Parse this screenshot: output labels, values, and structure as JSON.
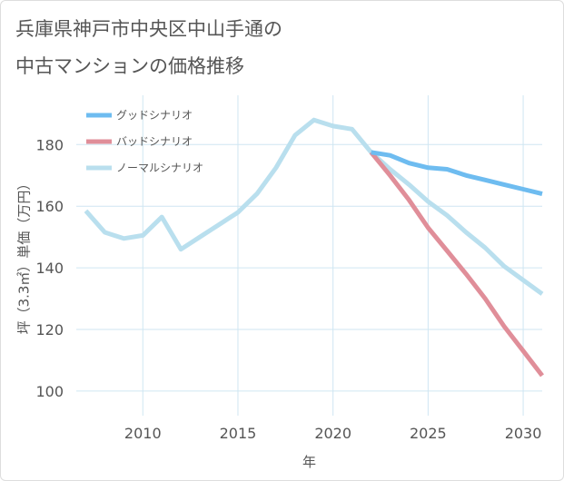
{
  "title_line1": "兵庫県神戸市中央区中山手通の",
  "title_line2": "中古マンションの価格推移",
  "chart_data": {
    "type": "line",
    "xlabel": "年",
    "ylabel": "坪（3.3㎡）単価（万円）",
    "xlim": [
      2006.5,
      2031
    ],
    "ylim": [
      92,
      196
    ],
    "x_ticks": [
      2010,
      2015,
      2020,
      2025,
      2030
    ],
    "y_ticks": [
      100,
      120,
      140,
      160,
      180
    ],
    "grid": true,
    "legend_position": "top-left",
    "series": [
      {
        "name": "グッドシナリオ",
        "color": "#6ebcf0",
        "x": [
          2022,
          2023,
          2024,
          2025,
          2026,
          2027,
          2028,
          2029,
          2030,
          2031
        ],
        "y": [
          177.5,
          176.5,
          174.0,
          172.5,
          172.0,
          170.0,
          168.5,
          167.0,
          165.5,
          164.0
        ]
      },
      {
        "name": "バッドシナリオ",
        "color": "#e08e99",
        "x": [
          2022,
          2023,
          2024,
          2025,
          2026,
          2027,
          2028,
          2029,
          2030,
          2031
        ],
        "y": [
          177.5,
          170.0,
          162.0,
          153.0,
          145.5,
          138.0,
          130.0,
          121.0,
          113.0,
          105.0
        ]
      },
      {
        "name": "ノーマルシナリオ",
        "color": "#b9dfee",
        "x": [
          2007,
          2008,
          2009,
          2010,
          2011,
          2012,
          2013,
          2014,
          2015,
          2016,
          2017,
          2018,
          2019,
          2020,
          2021,
          2022,
          2023,
          2024,
          2025,
          2026,
          2027,
          2028,
          2029,
          2030,
          2031
        ],
        "y": [
          158.5,
          151.5,
          149.5,
          150.5,
          156.5,
          146.0,
          150.0,
          154.0,
          158.0,
          164.0,
          172.5,
          183.0,
          188.0,
          186.0,
          185.0,
          177.5,
          172.0,
          167.0,
          161.5,
          157.0,
          151.5,
          146.5,
          140.5,
          136.0,
          131.5
        ]
      }
    ]
  }
}
